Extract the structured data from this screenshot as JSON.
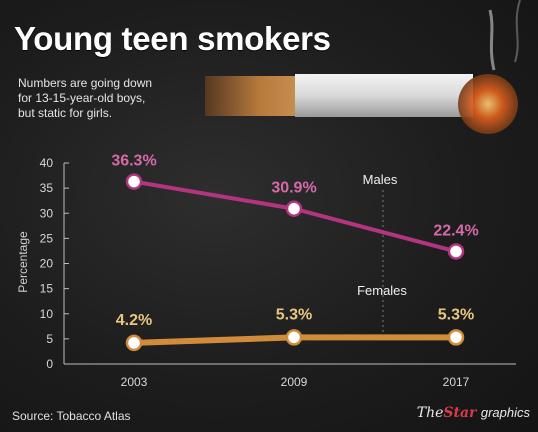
{
  "title": "Young teen smokers",
  "subtitle_lines": [
    "Numbers are going down",
    "for 13-15-year-old boys,",
    "but static for girls."
  ],
  "source": "Source: Tobacco Atlas",
  "brand": {
    "the": "The",
    "star": "Star",
    "graphics": "graphics"
  },
  "colors": {
    "males": "#b3357f",
    "males_label": "#d66aa8",
    "females": "#d08c3a",
    "females_label": "#e7c77f",
    "marker_fill": "#ffffff",
    "axis": "#bdbdbd"
  },
  "chart_data": {
    "type": "line",
    "categories": [
      "2003",
      "2009",
      "2017"
    ],
    "ylabel": "Percentage",
    "ylim": [
      0,
      40
    ],
    "yticks": [
      0,
      5,
      10,
      15,
      20,
      25,
      30,
      35,
      40
    ],
    "grid": false,
    "series": [
      {
        "name": "Males",
        "values": [
          36.3,
          30.9,
          22.4
        ],
        "labels": [
          "36.3%",
          "30.9%",
          "22.4%"
        ]
      },
      {
        "name": "Females",
        "values": [
          4.2,
          5.3,
          5.3
        ],
        "labels": [
          "4.2%",
          "5.3%",
          "5.3%"
        ]
      }
    ]
  }
}
